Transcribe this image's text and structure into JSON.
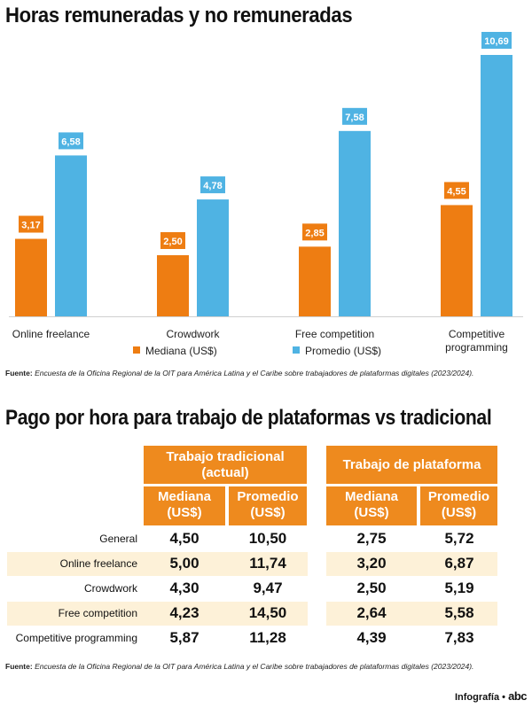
{
  "chart_data": {
    "type": "bar",
    "title": "Horas remuneradas y no remuneradas",
    "categories": [
      "Online freelance",
      "Crowdwork",
      "Free competition",
      "Competitive\nprogramming"
    ],
    "series": [
      {
        "name": "Mediana (US$)",
        "values": [
          3.17,
          2.5,
          2.85,
          4.55
        ],
        "labels": [
          "3,17",
          "2,50",
          "2,85",
          "4,55"
        ],
        "color": "#ee7d12"
      },
      {
        "name": "Promedio (US$)",
        "values": [
          6.58,
          4.78,
          7.58,
          10.69
        ],
        "labels": [
          "6,58",
          "4,78",
          "7,58",
          "10,69"
        ],
        "color": "#4fb3e3"
      }
    ],
    "ylim": [
      0,
      10.69
    ],
    "grid": false,
    "legend": "bottom"
  },
  "source1": {
    "label": "Fuente:",
    "text": "Encuesta de la Oficina Regional de la OIT para América Latina y el Caribe sobre trabajadores de plataformas digitales (2023/2024)."
  },
  "table": {
    "title": "Pago por hora para trabajo de plataformas vs tradicional",
    "group1": "Trabajo tradicional\n(actual)",
    "group2": "Trabajo de plataforma",
    "col_median": "Mediana\n(US$)",
    "col_mean": "Promedio\n(US$)",
    "rows": [
      {
        "label": "General",
        "values": [
          "4,50",
          "10,50",
          "2,75",
          "5,72"
        ]
      },
      {
        "label": "Online freelance",
        "values": [
          "5,00",
          "11,74",
          "3,20",
          "6,87"
        ]
      },
      {
        "label": "Crowdwork",
        "values": [
          "4,30",
          "9,47",
          "2,50",
          "5,19"
        ]
      },
      {
        "label": "Free competition",
        "values": [
          "4,23",
          "14,50",
          "2,64",
          "5,58"
        ]
      },
      {
        "label": "Competitive programming",
        "values": [
          "5,87",
          "11,28",
          "4,39",
          "7,83"
        ]
      }
    ]
  },
  "source2": {
    "label": "Fuente:",
    "text": "Encuesta de la Oficina Regional de la OIT para América Latina y el Caribe sobre trabajadores de plataformas digitales (2023/2024)."
  },
  "credit": {
    "label": "Infografía",
    "sep": "•",
    "logo": "abc"
  }
}
